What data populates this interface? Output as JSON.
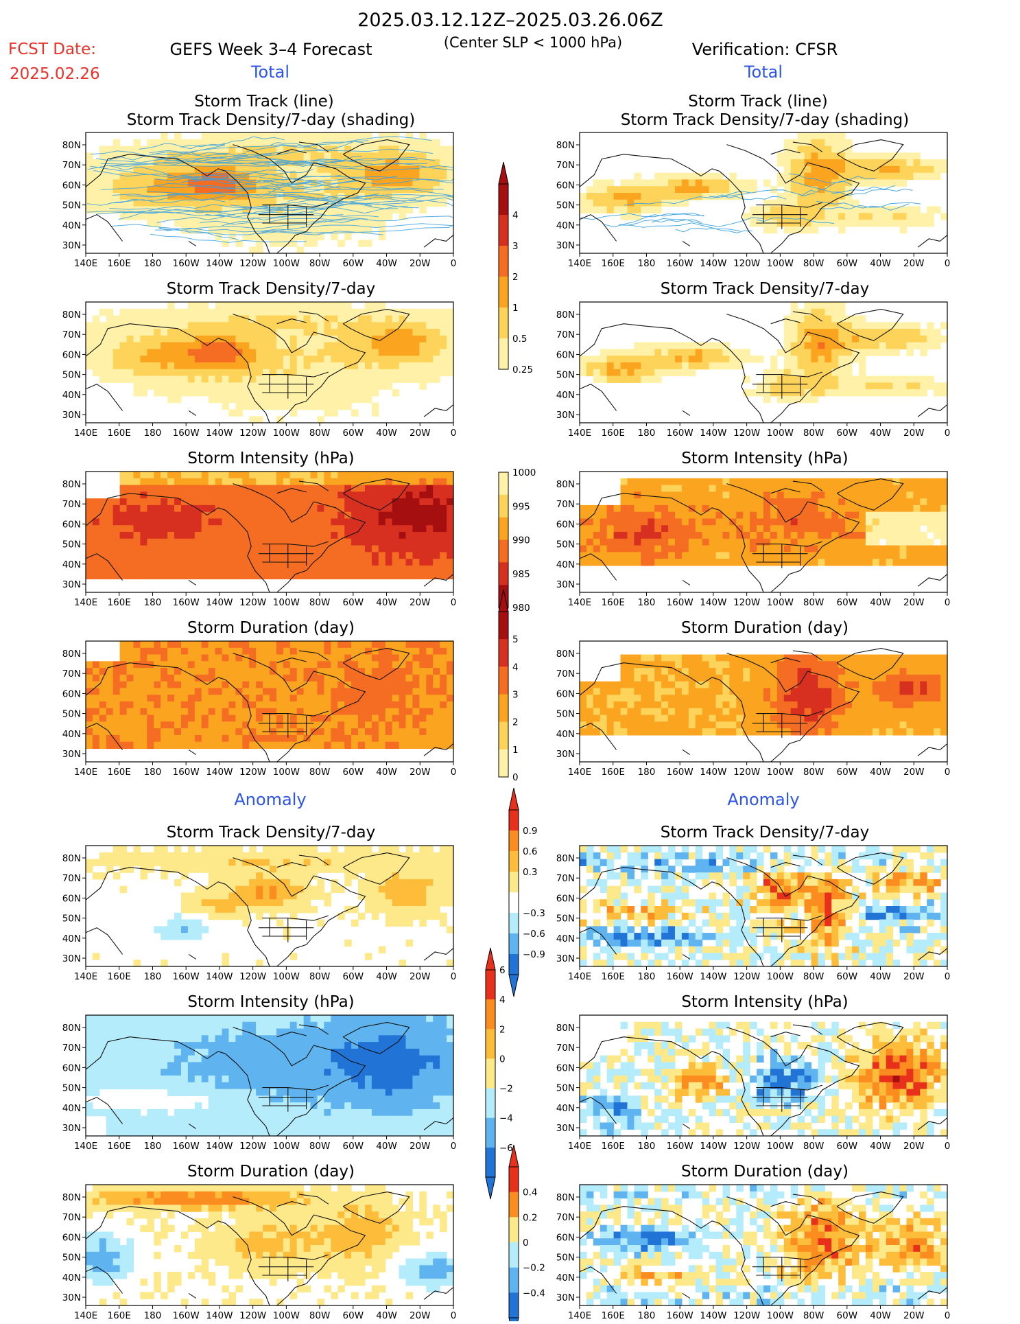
{
  "header": {
    "period": "2025.03.12.12Z–2025.03.26.06Z",
    "criterion": "(Center SLP < 1000 hPa)",
    "fcst_label": "FCST Date:",
    "fcst_date": "2025.02.26",
    "forecast_title": "GEFS Week 3–4 Forecast",
    "verification_title": "Verification: CFSR",
    "total_label": "Total",
    "anomaly_label": "Anomaly"
  },
  "axes": {
    "lon_ticks": [
      "140E",
      "160E",
      "180",
      "160W",
      "140W",
      "120W",
      "100W",
      "80W",
      "60W",
      "40W",
      "20W",
      "0"
    ],
    "lat_ticks": [
      "80N",
      "70N",
      "60N",
      "50N",
      "40N",
      "30N"
    ]
  },
  "colorbars": [
    {
      "id": "density",
      "labels": [
        "4",
        "3",
        "2",
        "1",
        "0.5",
        "0.25"
      ],
      "colors": [
        "#a50f0f",
        "#d73020",
        "#f46d22",
        "#fba420",
        "#fdd35a",
        "#fff2a8"
      ]
    },
    {
      "id": "intensity",
      "labels": [
        "1000",
        "995",
        "990",
        "985",
        "980"
      ],
      "colors": [
        "#fff2a8",
        "#fdd35a",
        "#fba420",
        "#f46d22",
        "#d73020",
        "#a50f0f"
      ]
    },
    {
      "id": "duration",
      "labels": [
        "5",
        "4",
        "3",
        "2",
        "1",
        "0"
      ],
      "colors": [
        "#a50f0f",
        "#d73020",
        "#f46d22",
        "#fba420",
        "#fdd35a",
        "#fff2a8"
      ]
    },
    {
      "id": "density_anom",
      "labels": [
        "0.9",
        "0.6",
        "0.3",
        "−0.3",
        "−0.6",
        "−0.9"
      ],
      "colors": [
        "#e8311a",
        "#fb8c1f",
        "#fdbd3a",
        "#fde88a",
        "#ffffff",
        "#b4ecfb",
        "#5fb4f0",
        "#2173d6"
      ]
    },
    {
      "id": "intensity_anom",
      "labels": [
        "6",
        "4",
        "2",
        "0",
        "−2",
        "−4",
        "−6"
      ],
      "colors": [
        "#e8311a",
        "#fb8c1f",
        "#fdbd3a",
        "#fde88a",
        "#b4ecfb",
        "#5fb4f0",
        "#2173d6"
      ]
    },
    {
      "id": "duration_anom",
      "labels": [
        "0.4",
        "0.2",
        "0",
        "−0.2",
        "−0.4"
      ],
      "colors": [
        "#e8311a",
        "#fb8c1f",
        "#fde88a",
        "#b4ecfb",
        "#5fb4f0",
        "#2173d6"
      ]
    }
  ],
  "chart_data": [
    {
      "type": "heatmap",
      "panel": "forecast-total-track",
      "title_line1": "Storm Track (line)",
      "title_line2": "Storm Track Density/7-day (shading)",
      "track_color": "#3aa0e0"
    },
    {
      "type": "heatmap",
      "panel": "verification-total-track",
      "title_line1": "Storm Track (line)",
      "title_line2": "Storm Track Density/7-day (shading)",
      "track_color": "#3aa0e0"
    },
    {
      "type": "heatmap",
      "panel": "forecast-total-density",
      "title": "Storm Track Density/7-day"
    },
    {
      "type": "heatmap",
      "panel": "verification-total-density",
      "title": "Storm Track Density/7-day"
    },
    {
      "type": "heatmap",
      "panel": "forecast-total-intensity",
      "title": "Storm Intensity (hPa)"
    },
    {
      "type": "heatmap",
      "panel": "verification-total-intensity",
      "title": "Storm Intensity (hPa)"
    },
    {
      "type": "heatmap",
      "panel": "forecast-total-duration",
      "title": "Storm Duration (day)"
    },
    {
      "type": "heatmap",
      "panel": "verification-total-duration",
      "title": "Storm Duration (day)"
    },
    {
      "type": "heatmap",
      "panel": "forecast-anom-density",
      "title": "Storm Track Density/7-day"
    },
    {
      "type": "heatmap",
      "panel": "verification-anom-density",
      "title": "Storm Track Density/7-day"
    },
    {
      "type": "heatmap",
      "panel": "forecast-anom-intensity",
      "title": "Storm Intensity (hPa)"
    },
    {
      "type": "heatmap",
      "panel": "verification-anom-intensity",
      "title": "Storm Intensity (hPa)"
    },
    {
      "type": "heatmap",
      "panel": "forecast-anom-duration",
      "title": "Storm Duration (day)"
    },
    {
      "type": "heatmap",
      "panel": "verification-anom-duration",
      "title": "Storm Duration (day)"
    }
  ]
}
